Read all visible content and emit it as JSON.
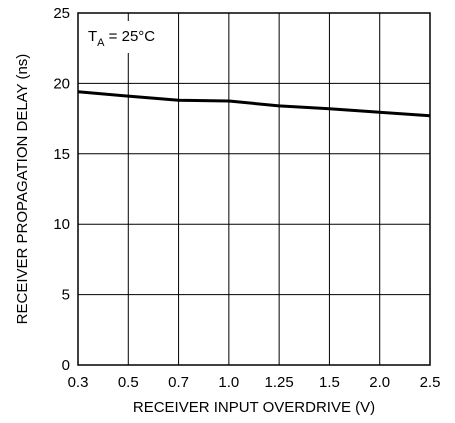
{
  "chart_data": {
    "type": "line",
    "title": "",
    "xlabel": "RECEIVER INPUT OVERDRIVE (V)",
    "ylabel": "RECEIVER PROPAGATION DELAY (ns)",
    "ylim": [
      0,
      25
    ],
    "y_ticks": [
      "0",
      "5",
      "10",
      "15",
      "20",
      "25"
    ],
    "x_ticks": [
      "0.3",
      "0.5",
      "0.7",
      "1.0",
      "1.25",
      "1.5",
      "2.0",
      "2.5"
    ],
    "x_scale": "categorical (tick values evenly spaced)",
    "grid": true,
    "annotation": {
      "main": "T",
      "sub": "A",
      "rest": " = 25°C"
    },
    "series": [
      {
        "x": [
          "0.3",
          "0.5",
          "0.7",
          "1.0",
          "1.25",
          "1.5",
          "2.0",
          "2.5"
        ],
        "values": [
          19.4,
          19.1,
          18.8,
          18.75,
          18.4,
          18.2,
          17.95,
          17.7
        ],
        "color": "#000000"
      }
    ]
  }
}
